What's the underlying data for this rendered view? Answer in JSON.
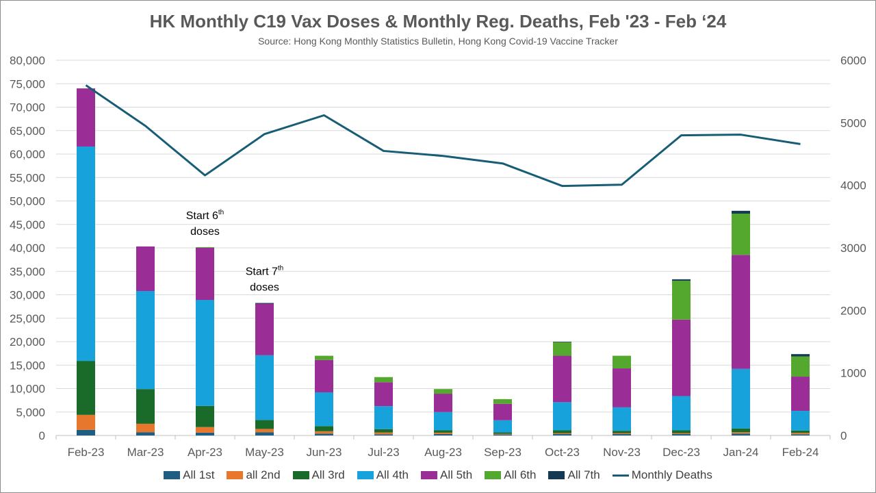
{
  "chart_data": {
    "type": "bar",
    "stacked": true,
    "title": "HK Monthly C19 Vax Doses & Monthly Reg. Deaths, Feb '23 - Feb ‘24",
    "subtitle": "Source: Hong Kong Monthly Statistics Bulletin, Hong Kong Covid-19 Vaccine Tracker",
    "categories": [
      "Feb-23",
      "Mar-23",
      "Apr-23",
      "May-23",
      "Jun-23",
      "Jul-23",
      "Aug-23",
      "Sep-23",
      "Oct-23",
      "Nov-23",
      "Dec-23",
      "Jan-24",
      "Feb-24"
    ],
    "y_left": {
      "min": 0,
      "max": 80000,
      "step": 5000,
      "ticks": [
        "0",
        "5,000",
        "10,000",
        "15,000",
        "20,000",
        "25,000",
        "30,000",
        "35,000",
        "40,000",
        "45,000",
        "50,000",
        "55,000",
        "60,000",
        "65,000",
        "70,000",
        "75,000",
        "80,000"
      ]
    },
    "y_right": {
      "min": 0,
      "max": 6000,
      "step": 1000,
      "ticks": [
        "0",
        "1000",
        "2000",
        "3000",
        "4000",
        "5000",
        "6000"
      ]
    },
    "grid": true,
    "legend_position": "bottom",
    "series": [
      {
        "name": "All 1st",
        "color": "#1f5d82",
        "values": [
          1200,
          700,
          600,
          700,
          400,
          250,
          300,
          200,
          300,
          300,
          300,
          400,
          250
        ]
      },
      {
        "name": "all 2nd",
        "color": "#e8772e",
        "values": [
          3200,
          1800,
          1200,
          700,
          500,
          400,
          300,
          150,
          200,
          200,
          200,
          300,
          300
        ]
      },
      {
        "name": "All 3rd",
        "color": "#1a6b2a",
        "values": [
          11500,
          7400,
          4500,
          1900,
          1100,
          700,
          500,
          300,
          600,
          500,
          600,
          800,
          500
        ]
      },
      {
        "name": "All 4th",
        "color": "#17a2dc",
        "values": [
          45700,
          20900,
          22600,
          13800,
          7200,
          4900,
          3900,
          2600,
          6000,
          5000,
          7300,
          12700,
          4200
        ]
      },
      {
        "name": "All 5th",
        "color": "#9b2d96",
        "values": [
          12400,
          9500,
          11100,
          11000,
          6900,
          5100,
          3900,
          3500,
          9900,
          8300,
          16300,
          24300,
          7300
        ]
      },
      {
        "name": "All 6th",
        "color": "#55a82e",
        "values": [
          0,
          0,
          150,
          0,
          900,
          1100,
          1000,
          1000,
          2900,
          2700,
          8300,
          8800,
          4300
        ]
      },
      {
        "name": "All 7th",
        "color": "#133a53",
        "values": [
          0,
          0,
          0,
          150,
          0,
          0,
          0,
          0,
          100,
          0,
          300,
          600,
          500
        ]
      }
    ],
    "line_series": {
      "name": "Monthly Deaths",
      "color": "#175d75",
      "axis": "right",
      "values": [
        5600,
        4950,
        4160,
        4820,
        5120,
        4550,
        4470,
        4350,
        3990,
        4010,
        4800,
        4810,
        4660
      ]
    },
    "annotations": [
      {
        "category": "Apr-23",
        "line1": "Start 6",
        "sup": "th",
        "line2": "doses"
      },
      {
        "category": "May-23",
        "line1": "Start 7",
        "sup": "th",
        "line2": "doses"
      }
    ]
  }
}
